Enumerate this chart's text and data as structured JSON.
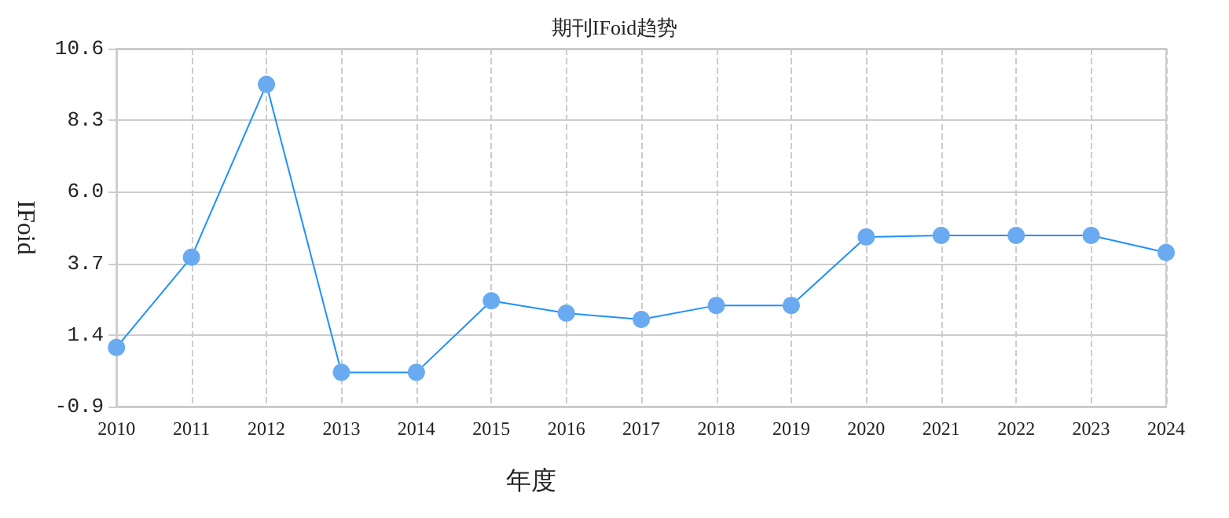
{
  "chart_data": {
    "type": "line",
    "title": "期刊IFoid趋势",
    "xlabel": "年度",
    "ylabel": "IFoid",
    "categories": [
      "2010",
      "2011",
      "2012",
      "2013",
      "2014",
      "2015",
      "2016",
      "2017",
      "2018",
      "2019",
      "2020",
      "2021",
      "2022",
      "2023",
      "2024"
    ],
    "series": [
      {
        "color": "#1e90ff",
        "values": [
          1.0,
          3.9,
          9.45,
          0.2,
          0.2,
          2.5,
          2.1,
          1.9,
          2.35,
          2.35,
          4.55,
          4.6,
          4.6,
          4.6,
          4.05
        ]
      }
    ],
    "ylim": [
      -0.9,
      10.6
    ],
    "yticks": [
      -0.9,
      1.4,
      3.7,
      {
        "value": 6,
        "label": "6.0"
      },
      8.3,
      10.6
    ],
    "grid": true,
    "marker": "circle",
    "line_style": "solid"
  }
}
